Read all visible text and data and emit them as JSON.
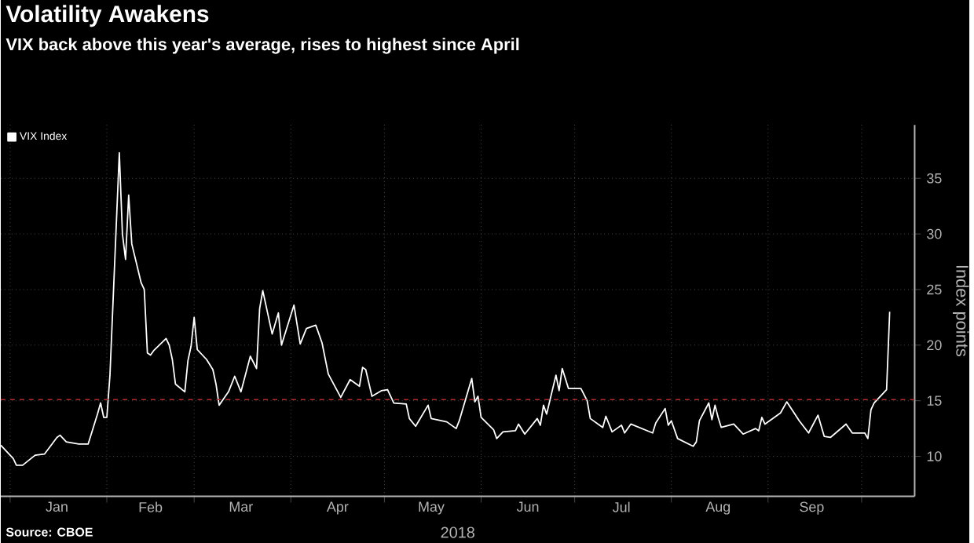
{
  "chart_data": {
    "type": "line",
    "title": "Volatility Awakens",
    "subtitle": "VIX back above this year's average, rises to highest since April",
    "xlabel": "2018",
    "ylabel": "Index points",
    "annotations": [
      "Source: CBOE"
    ],
    "x": [
      "2017-12-29",
      "2018-01-02",
      "2018-01-03",
      "2018-01-05",
      "2018-01-09",
      "2018-01-12",
      "2018-01-16",
      "2018-01-17",
      "2018-01-19",
      "2018-01-23",
      "2018-01-26",
      "2018-01-29",
      "2018-01-30",
      "2018-01-31",
      "2018-02-01",
      "2018-02-02",
      "2018-02-05",
      "2018-02-06",
      "2018-02-07",
      "2018-02-08",
      "2018-02-09",
      "2018-02-12",
      "2018-02-13",
      "2018-02-14",
      "2018-02-15",
      "2018-02-16",
      "2018-02-20",
      "2018-02-21",
      "2018-02-22",
      "2018-02-23",
      "2018-02-26",
      "2018-02-27",
      "2018-02-28",
      "2018-03-01",
      "2018-03-02",
      "2018-03-05",
      "2018-03-07",
      "2018-03-08",
      "2018-03-09",
      "2018-03-12",
      "2018-03-14",
      "2018-03-16",
      "2018-03-19",
      "2018-03-21",
      "2018-03-22",
      "2018-03-23",
      "2018-03-26",
      "2018-03-28",
      "2018-03-29",
      "2018-04-02",
      "2018-04-04",
      "2018-04-06",
      "2018-04-09",
      "2018-04-11",
      "2018-04-13",
      "2018-04-17",
      "2018-04-20",
      "2018-04-23",
      "2018-04-24",
      "2018-04-25",
      "2018-04-27",
      "2018-04-30",
      "2018-05-02",
      "2018-05-04",
      "2018-05-08",
      "2018-05-09",
      "2018-05-11",
      "2018-05-15",
      "2018-05-16",
      "2018-05-21",
      "2018-05-24",
      "2018-05-25",
      "2018-05-29",
      "2018-05-30",
      "2018-05-31",
      "2018-06-01",
      "2018-06-05",
      "2018-06-06",
      "2018-06-08",
      "2018-06-12",
      "2018-06-13",
      "2018-06-15",
      "2018-06-19",
      "2018-06-20",
      "2018-06-21",
      "2018-06-22",
      "2018-06-25",
      "2018-06-26",
      "2018-06-27",
      "2018-06-29",
      "2018-07-03",
      "2018-07-05",
      "2018-07-06",
      "2018-07-10",
      "2018-07-11",
      "2018-07-13",
      "2018-07-16",
      "2018-07-17",
      "2018-07-19",
      "2018-07-26",
      "2018-07-27",
      "2018-07-30",
      "2018-07-31",
      "2018-08-01",
      "2018-08-03",
      "2018-08-08",
      "2018-08-09",
      "2018-08-10",
      "2018-08-13",
      "2018-08-14",
      "2018-08-15",
      "2018-08-16",
      "2018-08-17",
      "2018-08-21",
      "2018-08-24",
      "2018-08-28",
      "2018-08-29",
      "2018-08-30",
      "2018-08-31",
      "2018-09-05",
      "2018-09-07",
      "2018-09-11",
      "2018-09-14",
      "2018-09-17",
      "2018-09-19",
      "2018-09-21",
      "2018-09-26",
      "2018-09-28",
      "2018-10-02",
      "2018-10-03",
      "2018-10-04",
      "2018-10-05",
      "2018-10-08",
      "2018-10-09",
      "2018-10-10"
    ],
    "series": [
      {
        "name": "VIX Index",
        "color": "#ffffff",
        "values": [
          11.0,
          9.8,
          9.2,
          9.2,
          10.1,
          10.2,
          11.7,
          11.9,
          11.3,
          11.1,
          11.1,
          13.8,
          14.8,
          13.5,
          13.5,
          17.3,
          37.3,
          30.0,
          27.7,
          33.5,
          29.1,
          25.6,
          25.0,
          19.3,
          19.1,
          19.5,
          20.6,
          20.0,
          18.7,
          16.5,
          15.8,
          18.6,
          19.9,
          22.5,
          19.6,
          18.7,
          17.8,
          16.5,
          14.6,
          15.8,
          17.2,
          15.8,
          19.0,
          17.9,
          23.3,
          24.9,
          21.0,
          22.9,
          20.0,
          23.6,
          20.1,
          21.5,
          21.8,
          20.2,
          17.4,
          15.3,
          16.9,
          16.3,
          18.0,
          17.8,
          15.4,
          15.9,
          16.0,
          14.8,
          14.7,
          13.4,
          12.7,
          14.6,
          13.4,
          13.1,
          12.5,
          13.2,
          17.0,
          14.9,
          15.4,
          13.5,
          12.4,
          11.6,
          12.2,
          12.3,
          12.9,
          12.0,
          13.4,
          12.8,
          14.6,
          13.8,
          17.3,
          15.9,
          17.9,
          16.1,
          16.1,
          15.0,
          13.4,
          12.6,
          13.6,
          12.2,
          12.8,
          12.1,
          12.9,
          12.1,
          13.0,
          14.3,
          12.8,
          13.2,
          11.6,
          10.9,
          11.3,
          13.2,
          14.8,
          13.3,
          14.6,
          13.5,
          12.6,
          12.9,
          12.0,
          12.5,
          12.3,
          13.5,
          12.9,
          13.9,
          14.9,
          13.2,
          12.1,
          13.7,
          11.8,
          11.7,
          12.9,
          12.1,
          12.1,
          11.6,
          14.2,
          14.8,
          15.7,
          16.0,
          23.0
        ]
      }
    ],
    "xlim": [
      "2017-12-29",
      "2018-10-18"
    ],
    "xticks": [
      {
        "value": "2018-01-01",
        "label": null
      },
      {
        "value": "2018-02-01",
        "label": null
      },
      {
        "value": "2018-03-01",
        "label": null
      },
      {
        "value": "2018-04-01",
        "label": null
      },
      {
        "value": "2018-05-01",
        "label": null
      },
      {
        "value": "2018-06-01",
        "label": null
      },
      {
        "value": "2018-07-01",
        "label": null
      },
      {
        "value": "2018-08-01",
        "label": null
      },
      {
        "value": "2018-09-01",
        "label": null
      },
      {
        "value": "2018-10-01",
        "label": null
      },
      {
        "value": "2018-01-16",
        "label": "Jan"
      },
      {
        "value": "2018-02-15",
        "label": "Feb"
      },
      {
        "value": "2018-03-16",
        "label": "Mar"
      },
      {
        "value": "2018-04-16",
        "label": "Apr"
      },
      {
        "value": "2018-05-16",
        "label": "May"
      },
      {
        "value": "2018-06-16",
        "label": "Jun"
      },
      {
        "value": "2018-07-16",
        "label": "Jul"
      },
      {
        "value": "2018-08-16",
        "label": "Aug"
      },
      {
        "value": "2018-09-15",
        "label": "Sep"
      }
    ],
    "ylim": [
      6.4,
      39.8
    ],
    "yticks": [
      10,
      15,
      20,
      25,
      30,
      35
    ],
    "ref_lines": [
      {
        "axis": "y",
        "value": 15.1,
        "color": "#b02a30",
        "line_style": "dashed"
      }
    ],
    "grid": true,
    "legend": "top left",
    "marker": "none",
    "line_style": "solid"
  }
}
